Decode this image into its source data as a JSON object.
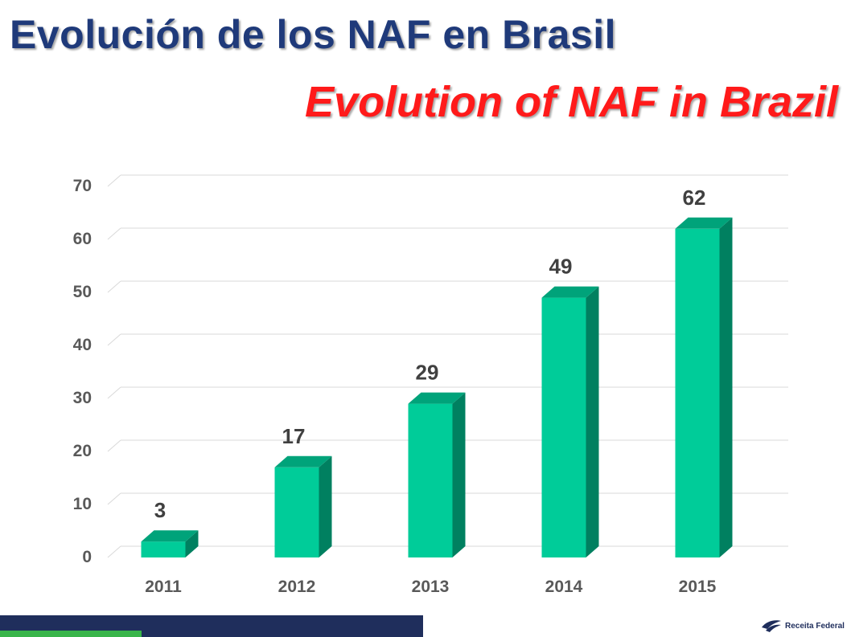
{
  "header": {
    "title_es": "Evolución de los NAF en Brasil",
    "title_en": "Evolution of NAF in Brazil"
  },
  "colors": {
    "title_es": "#1f3a7a",
    "title_en": "#ff1a1a",
    "bar_front": "#00cc99",
    "bar_side": "#008060",
    "bar_top": "#00a37a",
    "footer_navy": "#1f2e5c",
    "footer_green": "#39b54a"
  },
  "chart_data": {
    "type": "bar",
    "categories": [
      "2011",
      "2012",
      "2013",
      "2014",
      "2015"
    ],
    "values": [
      3,
      17,
      29,
      49,
      62
    ],
    "data_labels": [
      "3",
      "17",
      "29",
      "49",
      "62"
    ],
    "yticks": [
      "0",
      "10",
      "20",
      "30",
      "40",
      "50",
      "60",
      "70"
    ],
    "ylim": [
      0,
      70
    ],
    "grid": true,
    "legend": "none",
    "style": "3d-bar"
  },
  "footer": {
    "logo_text": "Receita Federal"
  }
}
